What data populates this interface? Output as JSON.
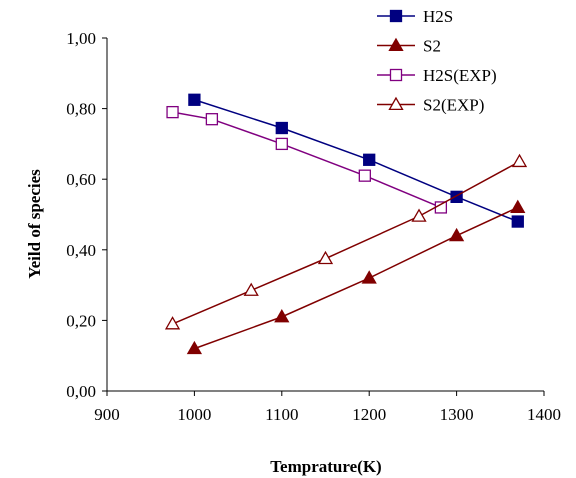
{
  "chart_data": {
    "type": "line",
    "title": "",
    "xlabel": "Temprature(K)",
    "ylabel": "Yeild of species",
    "xlim": [
      900,
      1400
    ],
    "ylim": [
      0,
      1.0
    ],
    "xticks": [
      900,
      1000,
      1100,
      1200,
      1300,
      1400
    ],
    "xtick_labels": [
      "900",
      "1000",
      "1100",
      "1200",
      "1300",
      "1400"
    ],
    "yticks": [
      0,
      0.2,
      0.4,
      0.6,
      0.8,
      1.0
    ],
    "ytick_labels": [
      "0,00",
      "0,20",
      "0,40",
      "0,60",
      "0,80",
      "1,00"
    ],
    "grid": false,
    "legend_position": "top-right",
    "series": [
      {
        "name": "H2S",
        "color": "#000080",
        "marker": "square-filled",
        "x": [
          1000,
          1100,
          1200,
          1300,
          1370
        ],
        "y": [
          0.825,
          0.745,
          0.655,
          0.55,
          0.48
        ]
      },
      {
        "name": "S2",
        "color": "#800000",
        "marker": "triangle-filled",
        "x": [
          1000,
          1100,
          1200,
          1300,
          1370
        ],
        "y": [
          0.12,
          0.21,
          0.32,
          0.44,
          0.52
        ]
      },
      {
        "name": "H2S(EXP)",
        "color": "#800080",
        "marker": "square-open",
        "x": [
          975,
          1020,
          1100,
          1195,
          1282
        ],
        "y": [
          0.79,
          0.77,
          0.7,
          0.61,
          0.52
        ]
      },
      {
        "name": "S2(EXP)",
        "color": "#800000",
        "marker": "triangle-open",
        "x": [
          975,
          1065,
          1150,
          1257,
          1372
        ],
        "y": [
          0.19,
          0.285,
          0.375,
          0.495,
          0.65
        ]
      }
    ]
  }
}
